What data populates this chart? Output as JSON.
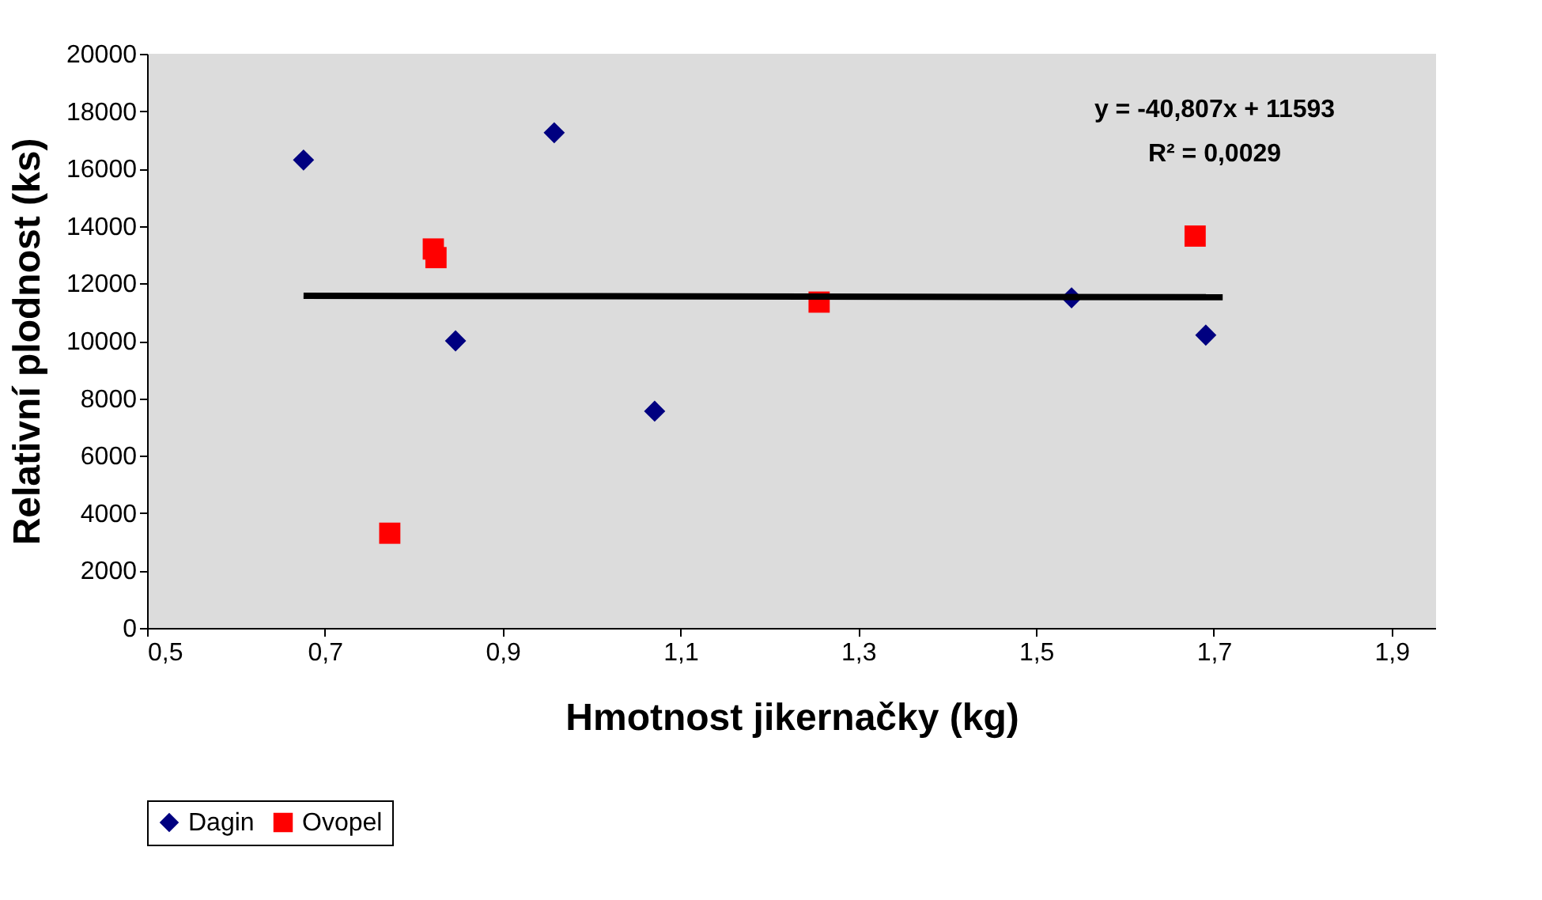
{
  "chart_data": {
    "type": "scatter",
    "xlabel": "Hmotnost jikernačky (kg)",
    "ylabel": "Relativní plodnost (ks)",
    "xlim": [
      0.5,
      1.95
    ],
    "xticks": [
      {
        "value": 0.5,
        "label": "0,5"
      },
      {
        "value": 0.7,
        "label": "0,7"
      },
      {
        "value": 0.9,
        "label": "0,9"
      },
      {
        "value": 1.1,
        "label": "1,1"
      },
      {
        "value": 1.3,
        "label": "1,3"
      },
      {
        "value": 1.5,
        "label": "1,5"
      },
      {
        "value": 1.7,
        "label": "1,7"
      },
      {
        "value": 1.9,
        "label": "1,9"
      }
    ],
    "ylim": [
      0,
      20000
    ],
    "yticks": [
      0,
      2000,
      4000,
      6000,
      8000,
      10000,
      12000,
      14000,
      16000,
      18000,
      20000
    ],
    "legend": "bottom",
    "annotations": [
      "y = -40,807x + 11593",
      "R² = 0,0029"
    ],
    "series": [
      {
        "name": "Dagin",
        "color": "#000080",
        "marker": "diamond",
        "x": [
          0.676,
          0.847,
          0.958,
          1.071,
          1.54,
          1.691
        ],
        "values": [
          16300,
          10000,
          17250,
          7550,
          11500,
          10200
        ]
      },
      {
        "name": "Ovopel",
        "color": "#ff0000",
        "marker": "square",
        "x": [
          0.773,
          0.822,
          0.825,
          1.256,
          1.679
        ],
        "values": [
          3300,
          13200,
          12900,
          11350,
          13650
        ]
      },
      {
        "type": "line",
        "color": "#000000",
        "x": [
          0.676,
          1.71
        ],
        "values": [
          11570,
          11520
        ]
      }
    ]
  }
}
